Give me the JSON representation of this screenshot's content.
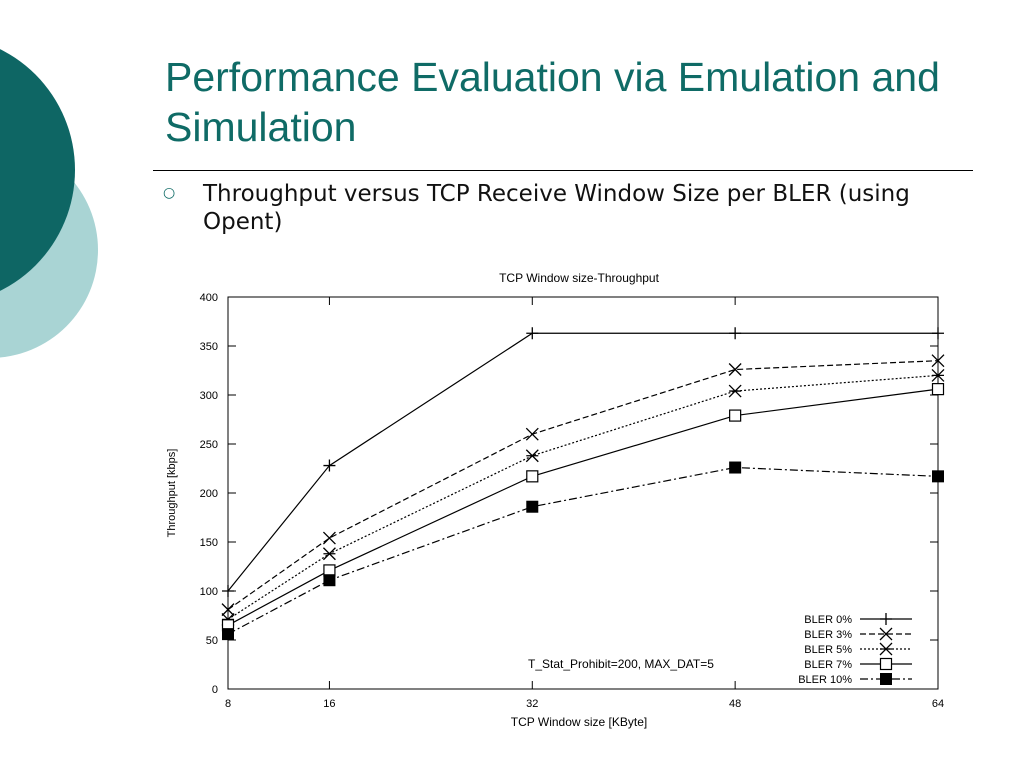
{
  "slide": {
    "title": "Performance Evaluation via Emulation and Simulation",
    "bullet": "Throughput versus TCP Receive Window Size per BLER (using Opent)",
    "accent_color": "#0f6b66",
    "decoration_colors": [
      "#0e6664",
      "#a9d4d4"
    ]
  },
  "chart_data": {
    "type": "line",
    "title": "TCP Window size-Throughput",
    "xlabel": "TCP Window size [KByte]",
    "ylabel": "Throughput [kbps]",
    "x": [
      8,
      16,
      32,
      48,
      64
    ],
    "xticks": [
      "8",
      "16",
      "32",
      "48",
      "64"
    ],
    "yticks": [
      "0",
      "50",
      "100",
      "150",
      "200",
      "250",
      "300",
      "350",
      "400"
    ],
    "xlim": [
      8,
      64
    ],
    "ylim": [
      0,
      400
    ],
    "grid": false,
    "legend_position": "bottom-right",
    "annotation": "T_Stat_Prohibit=200, MAX_DAT=5",
    "series": [
      {
        "name": "BLER 0%",
        "marker": "plus",
        "dash": "",
        "values": [
          100,
          228,
          363,
          363,
          363
        ]
      },
      {
        "name": "BLER 3%",
        "marker": "cross",
        "dash": "6,3",
        "values": [
          81,
          154,
          260,
          326,
          335
        ]
      },
      {
        "name": "BLER 5%",
        "marker": "star",
        "dash": "2,2",
        "values": [
          71,
          138,
          238,
          304,
          320
        ]
      },
      {
        "name": "BLER 7%",
        "marker": "square-open",
        "dash": "",
        "values": [
          65,
          121,
          217,
          279,
          306
        ]
      },
      {
        "name": "BLER 10%",
        "marker": "square-filled",
        "dash": "8,3,2,3",
        "values": [
          56,
          111,
          186,
          226,
          217
        ]
      }
    ]
  }
}
